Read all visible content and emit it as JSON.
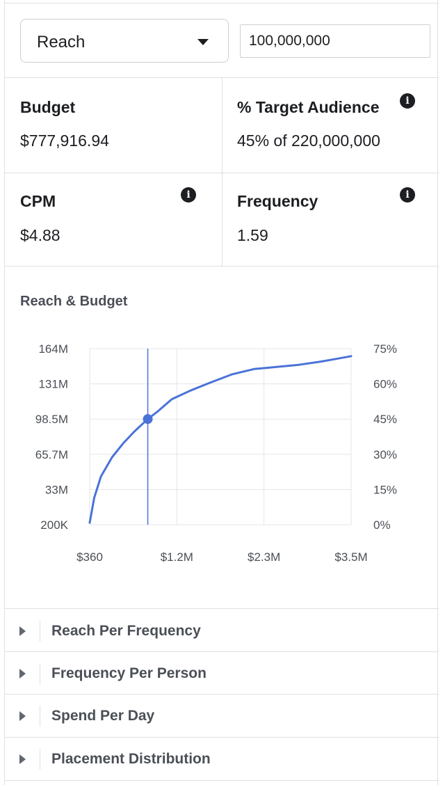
{
  "metric_selector": {
    "selected": "Reach"
  },
  "amount_input": {
    "value": "100,000,000"
  },
  "stats": {
    "budget": {
      "label": "Budget",
      "value": "$777,916.94"
    },
    "target_audience": {
      "label": "% Target Audience",
      "value": "45% of 220,000,000"
    },
    "cpm": {
      "label": "CPM",
      "value": "$4.88"
    },
    "frequency": {
      "label": "Frequency",
      "value": "1.59"
    }
  },
  "info_glyph": "i",
  "chart_title": "Reach & Budget",
  "chart_data": {
    "type": "line",
    "title": "Reach & Budget",
    "x_ticks": [
      "$360",
      "$1.2M",
      "$2.3M",
      "$3.5M"
    ],
    "x_tick_values": [
      360,
      1200000,
      2300000,
      3500000
    ],
    "y_left_ticks": [
      "164M",
      "131M",
      "98.5M",
      "65.7M",
      "33M",
      "200K"
    ],
    "y_right_ticks": [
      "75%",
      "60%",
      "45%",
      "30%",
      "15%",
      "0%"
    ],
    "xlim": [
      360,
      3500000
    ],
    "ylim": [
      200000,
      164000000
    ],
    "grid": true,
    "series": [
      {
        "x": [
          360,
          60000,
          150000,
          300000,
          450000,
          600000,
          777917,
          900000,
          1100000,
          1350000,
          1600000,
          1900000,
          2200000,
          2500000,
          2800000,
          3100000,
          3300000,
          3500000
        ],
        "y": [
          2000000,
          25000000,
          45000000,
          63000000,
          76000000,
          87000000,
          98500000,
          105000000,
          117000000,
          125000000,
          132000000,
          140000000,
          145000000,
          147000000,
          149000000,
          152000000,
          154500000,
          157000000
        ]
      }
    ],
    "marker": {
      "x": 777917,
      "y": 98500000
    },
    "colors": {
      "line": "#4a72d8",
      "grid": "#e4e6eb"
    }
  },
  "accordion": [
    {
      "label": "Reach Per Frequency"
    },
    {
      "label": "Frequency Per Person"
    },
    {
      "label": "Spend Per Day"
    },
    {
      "label": "Placement Distribution"
    }
  ]
}
